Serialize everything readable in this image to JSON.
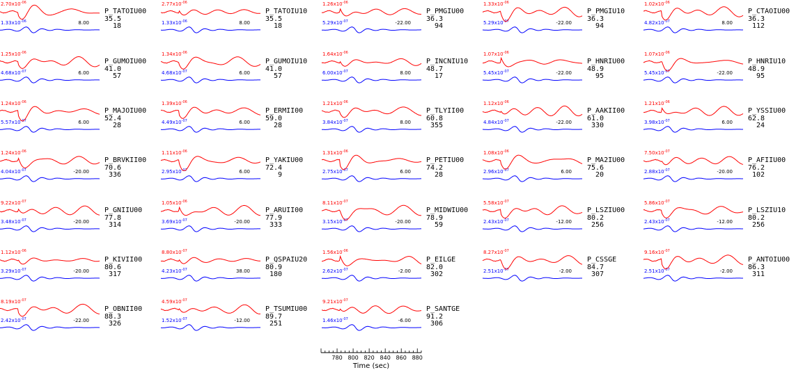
{
  "chart_data": {
    "type": "line",
    "colors": {
      "observed": "#ff0000",
      "synthetic": "#0000ff",
      "text": "#000000"
    },
    "xaxis": {
      "label": "Time (sec)",
      "ticks": [
        "780",
        "800",
        "820",
        "840",
        "860",
        "880"
      ],
      "range": [
        760,
        885
      ]
    },
    "stations": [
      {
        "name": "P_TATOIU00",
        "distance": "35.5",
        "azimuth": "18",
        "obs_amp": "2.70x10",
        "obs_exp": "-06",
        "syn_amp": "1.33x10",
        "syn_exp": "-06",
        "shift": "8.00"
      },
      {
        "name": "P_TATOIU10",
        "distance": "35.5",
        "azimuth": "18",
        "obs_amp": "2.77x10",
        "obs_exp": "-06",
        "syn_amp": "1.33x10",
        "syn_exp": "-06",
        "shift": "8.00"
      },
      {
        "name": "P_PMGIU00",
        "distance": "36.3",
        "azimuth": "94",
        "obs_amp": "1.26x10",
        "obs_exp": "-06",
        "syn_amp": "5.29x10",
        "syn_exp": "-07",
        "shift": "-22.00"
      },
      {
        "name": "P_PMGIU10",
        "distance": "36.3",
        "azimuth": "94",
        "obs_amp": "1.33x10",
        "obs_exp": "-06",
        "syn_amp": "5.29x10",
        "syn_exp": "-07",
        "shift": "-22.00"
      },
      {
        "name": "P_CTAOIU00",
        "distance": "36.3",
        "azimuth": "112",
        "obs_amp": "1.02x10",
        "obs_exp": "-06",
        "syn_amp": "4.82x10",
        "syn_exp": "-07",
        "shift": "8.00"
      },
      {
        "name": "P_GUMOIU00",
        "distance": "41.0",
        "azimuth": "57",
        "obs_amp": "1.25x10",
        "obs_exp": "-06",
        "syn_amp": "4.68x10",
        "syn_exp": "-07",
        "shift": "6.00"
      },
      {
        "name": "P_GUMOIU10",
        "distance": "41.0",
        "azimuth": "57",
        "obs_amp": "1.34x10",
        "obs_exp": "-06",
        "syn_amp": "4.68x10",
        "syn_exp": "-07",
        "shift": "6.00"
      },
      {
        "name": "P_INCNIU10",
        "distance": "48.7",
        "azimuth": "17",
        "obs_amp": "1.64x10",
        "obs_exp": "-06",
        "syn_amp": "6.00x10",
        "syn_exp": "-07",
        "shift": "8.00"
      },
      {
        "name": "P_HNRIU00",
        "distance": "48.9",
        "azimuth": "95",
        "obs_amp": "1.07x10",
        "obs_exp": "-06",
        "syn_amp": "5.45x10",
        "syn_exp": "-07",
        "shift": "-22.00"
      },
      {
        "name": "P_HNRIU10",
        "distance": "48.9",
        "azimuth": "95",
        "obs_amp": "1.07x10",
        "obs_exp": "-06",
        "syn_amp": "5.45x10",
        "syn_exp": "-07",
        "shift": "-22.00"
      },
      {
        "name": "P_MAJOIU00",
        "distance": "52.4",
        "azimuth": "28",
        "obs_amp": "1.24x10",
        "obs_exp": "-06",
        "syn_amp": "5.57x10",
        "syn_exp": "-07",
        "shift": "6.00"
      },
      {
        "name": "P_ERMII00",
        "distance": "59.0",
        "azimuth": "28",
        "obs_amp": "1.39x10",
        "obs_exp": "-06",
        "syn_amp": "4.49x10",
        "syn_exp": "-07",
        "shift": "6.00"
      },
      {
        "name": "P_TLYII00",
        "distance": "60.8",
        "azimuth": "355",
        "obs_amp": "1.21x10",
        "obs_exp": "-06",
        "syn_amp": "3.84x10",
        "syn_exp": "-07",
        "shift": "8.00"
      },
      {
        "name": "P_AAKII00",
        "distance": "61.0",
        "azimuth": "330",
        "obs_amp": "1.12x10",
        "obs_exp": "-06",
        "syn_amp": "4.84x10",
        "syn_exp": "-07",
        "shift": "-22.00"
      },
      {
        "name": "P_YSSIU00",
        "distance": "62.8",
        "azimuth": "24",
        "obs_amp": "1.21x10",
        "obs_exp": "-06",
        "syn_amp": "3.98x10",
        "syn_exp": "-07",
        "shift": "6.00"
      },
      {
        "name": "P_BRVKII00",
        "distance": "70.6",
        "azimuth": "336",
        "obs_amp": "1.24x10",
        "obs_exp": "-06",
        "syn_amp": "4.04x10",
        "syn_exp": "-07",
        "shift": "-20.00"
      },
      {
        "name": "P_YAKIU00",
        "distance": "72.4",
        "azimuth": "9",
        "obs_amp": "1.11x10",
        "obs_exp": "-06",
        "syn_amp": "2.95x10",
        "syn_exp": "-07",
        "shift": "6.00"
      },
      {
        "name": "P_PETIU00",
        "distance": "74.2",
        "azimuth": "28",
        "obs_amp": "1.31x10",
        "obs_exp": "-06",
        "syn_amp": "2.75x10",
        "syn_exp": "-07",
        "shift": "6.00"
      },
      {
        "name": "P_MA2IU00",
        "distance": "75.6",
        "azimuth": "20",
        "obs_amp": "1.08x10",
        "obs_exp": "-06",
        "syn_amp": "2.96x10",
        "syn_exp": "-07",
        "shift": "6.00"
      },
      {
        "name": "P_AFIIU00",
        "distance": "76.2",
        "azimuth": "102",
        "obs_amp": "7.50x10",
        "obs_exp": "-07",
        "syn_amp": "2.88x10",
        "syn_exp": "-07",
        "shift": "-20.00"
      },
      {
        "name": "P_GNIIU00",
        "distance": "77.8",
        "azimuth": "314",
        "obs_amp": "9.22x10",
        "obs_exp": "-07",
        "syn_amp": "3.48x10",
        "syn_exp": "-07",
        "shift": "-20.00"
      },
      {
        "name": "P_ARUII00",
        "distance": "77.9",
        "azimuth": "333",
        "obs_amp": "1.05x10",
        "obs_exp": "-06",
        "syn_amp": "3.69x10",
        "syn_exp": "-07",
        "shift": "-20.00"
      },
      {
        "name": "P_MIDWIU00",
        "distance": "78.9",
        "azimuth": "59",
        "obs_amp": "8.11x10",
        "obs_exp": "-07",
        "syn_amp": "3.15x10",
        "syn_exp": "-07",
        "shift": "-20.00"
      },
      {
        "name": "P_LSZIU00",
        "distance": "80.2",
        "azimuth": "256",
        "obs_amp": "5.58x10",
        "obs_exp": "-07",
        "syn_amp": "2.43x10",
        "syn_exp": "-07",
        "shift": "-12.00"
      },
      {
        "name": "P_LSZIU10",
        "distance": "80.2",
        "azimuth": "256",
        "obs_amp": "5.86x10",
        "obs_exp": "-07",
        "syn_amp": "2.43x10",
        "syn_exp": "-07",
        "shift": "-12.00"
      },
      {
        "name": "P_KIVII00",
        "distance": "80.6",
        "azimuth": "317",
        "obs_amp": "1.12x10",
        "obs_exp": "-06",
        "syn_amp": "3.29x10",
        "syn_exp": "-07",
        "shift": "-20.00"
      },
      {
        "name": "P_QSPAIU20",
        "distance": "80.9",
        "azimuth": "180",
        "obs_amp": "8.80x10",
        "obs_exp": "-07",
        "syn_amp": "4.23x10",
        "syn_exp": "-07",
        "shift": "38.00"
      },
      {
        "name": "P_EILGE",
        "distance": "82.0",
        "azimuth": "302",
        "obs_amp": "1.56x10",
        "obs_exp": "-06",
        "syn_amp": "2.62x10",
        "syn_exp": "-07",
        "shift": "-2.00"
      },
      {
        "name": "P_CSSGE",
        "distance": "84.7",
        "azimuth": "307",
        "obs_amp": "8.27x10",
        "obs_exp": "-07",
        "syn_amp": "2.51x10",
        "syn_exp": "-07",
        "shift": "-2.00"
      },
      {
        "name": "P_ANTOIU00",
        "distance": "86.3",
        "azimuth": "311",
        "obs_amp": "9.16x10",
        "obs_exp": "-07",
        "syn_amp": "2.51x10",
        "syn_exp": "-07",
        "shift": "-2.00"
      },
      {
        "name": "P_OBNII00",
        "distance": "88.3",
        "azimuth": "326",
        "obs_amp": "8.19x10",
        "obs_exp": "-07",
        "syn_amp": "2.42x10",
        "syn_exp": "-07",
        "shift": "-22.00"
      },
      {
        "name": "P_TSUMIU00",
        "distance": "89.7",
        "azimuth": "251",
        "obs_amp": "4.59x10",
        "obs_exp": "-07",
        "syn_amp": "1.52x10",
        "syn_exp": "-07",
        "shift": "-12.00"
      },
      {
        "name": "P_SANTGE",
        "distance": "91.2",
        "azimuth": "306",
        "obs_amp": "9.21x10",
        "obs_exp": "-07",
        "syn_amp": "1.46x10",
        "syn_exp": "-07",
        "shift": "-6.00"
      }
    ]
  }
}
